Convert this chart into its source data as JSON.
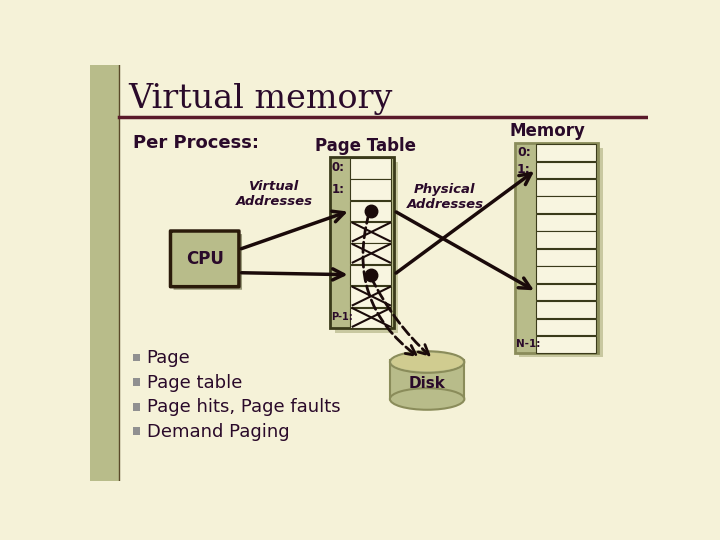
{
  "title": "Virtual memory",
  "background_color": "#f5f2d8",
  "title_color": "#2a0a2a",
  "header_line_color": "#5a1a2a",
  "left_bar_color": "#b8bc8a",
  "olive_color": "#b8bc8a",
  "olive_dark": "#8a8c5a",
  "shadow_color": "#c8c8a0",
  "text_dark": "#2a0a2a",
  "bullet_color": "#909090",
  "per_process_text": "Per Process:",
  "memory_label": "Memory",
  "page_table_label": "Page Table",
  "virtual_addr_label": "Virtual\nAddresses",
  "physical_addr_label": "Physical\nAddresses",
  "cpu_label": "CPU",
  "disk_label": "Disk",
  "bullets": [
    "Page",
    "Page table",
    "Page hits, Page faults",
    "Demand Paging"
  ]
}
